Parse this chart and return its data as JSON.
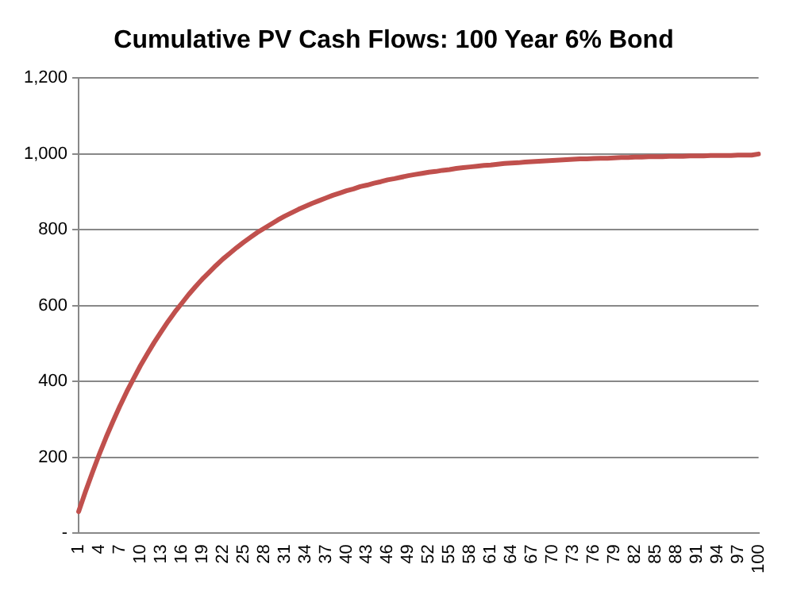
{
  "chart_data": {
    "type": "line",
    "title": "Cumulative PV Cash Flows: 100 Year 6% Bond",
    "categories": [
      "1",
      null,
      null,
      "4",
      null,
      null,
      "7",
      null,
      null,
      "10",
      null,
      null,
      "13",
      null,
      null,
      "16",
      null,
      null,
      "19",
      null,
      null,
      "22",
      null,
      null,
      "25",
      null,
      null,
      "28",
      null,
      null,
      "31",
      null,
      null,
      "34",
      null,
      null,
      "37",
      null,
      null,
      "40",
      null,
      null,
      "43",
      null,
      null,
      "46",
      null,
      null,
      "49",
      null,
      null,
      "52",
      null,
      null,
      "55",
      null,
      null,
      "58",
      null,
      null,
      "61",
      null,
      null,
      "64",
      null,
      null,
      "67",
      null,
      null,
      "70",
      null,
      null,
      "73",
      null,
      null,
      "76",
      null,
      null,
      "79",
      null,
      null,
      "82",
      null,
      null,
      "85",
      null,
      null,
      "88",
      null,
      null,
      "91",
      null,
      null,
      "94",
      null,
      null,
      "97",
      null,
      null,
      "100"
    ],
    "series": [
      {
        "color": "#c0504d",
        "values": [
          57,
          110,
          160,
          208,
          253,
          295,
          335,
          373,
          408,
          442,
          473,
          503,
          531,
          558,
          583,
          606,
          629,
          650,
          670,
          688,
          706,
          723,
          738,
          753,
          767,
          780,
          793,
          804,
          815,
          826,
          836,
          845,
          854,
          862,
          870,
          877,
          884,
          891,
          897,
          903,
          908,
          914,
          918,
          923,
          927,
          932,
          935,
          939,
          943,
          946,
          949,
          952,
          954,
          957,
          959,
          962,
          964,
          966,
          968,
          970,
          971,
          973,
          975,
          976,
          977,
          979,
          980,
          981,
          982,
          983,
          984,
          985,
          986,
          987,
          987,
          988,
          989,
          989,
          990,
          991,
          991,
          992,
          992,
          993,
          993,
          993,
          994,
          994,
          994,
          995,
          995,
          995,
          996,
          996,
          996,
          996,
          997,
          997,
          997,
          1000
        ]
      }
    ],
    "ylim": [
      0,
      1200
    ],
    "yticks": [
      {
        "value": 0,
        "label": "-"
      },
      {
        "value": 200,
        "label": "200"
      },
      {
        "value": 400,
        "label": "400"
      },
      {
        "value": 600,
        "label": "600"
      },
      {
        "value": 800,
        "label": "800"
      },
      {
        "value": 1000,
        "label": "1,000"
      },
      {
        "value": 1200,
        "label": "1,200"
      }
    ],
    "grid": "y",
    "legend": false,
    "marker": "none",
    "line_style": "solid"
  }
}
